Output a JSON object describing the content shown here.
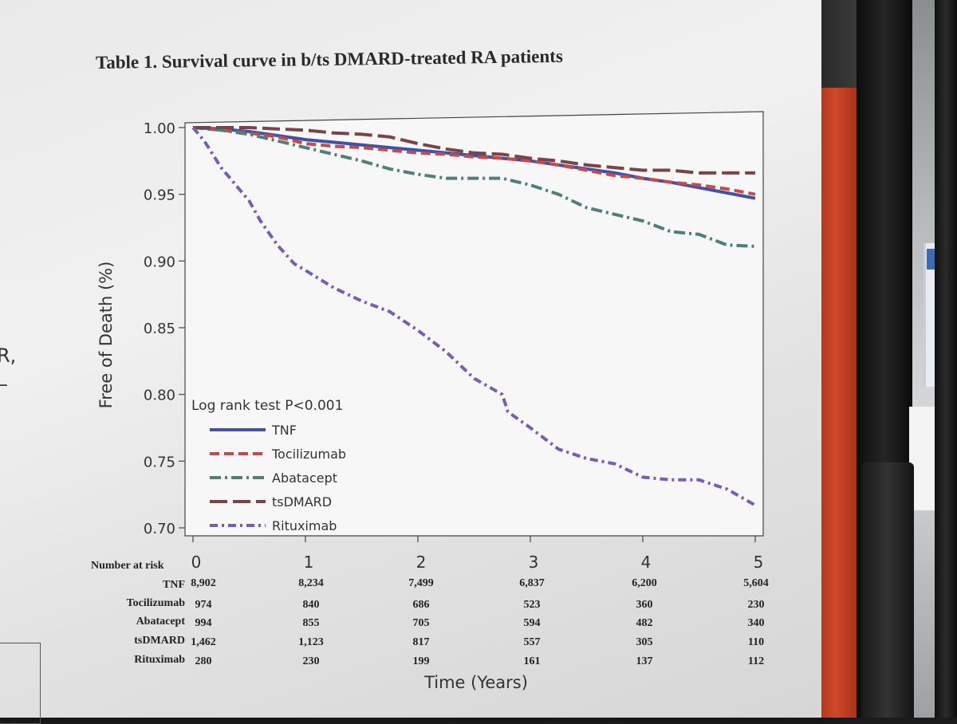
{
  "left_margin_text": {
    "line1": "R,",
    "line2": "–"
  },
  "chart_data": {
    "type": "line",
    "title": "Table 1. Survival curve in b/ts DMARD-treated RA patients",
    "xlabel": "Time (Years)",
    "ylabel": "Free of Death (%)",
    "xlim": [
      0,
      5
    ],
    "ylim": [
      0.7,
      1.0
    ],
    "x_ticks": [
      "0",
      "1",
      "2",
      "3",
      "4",
      "5"
    ],
    "y_ticks": [
      "0.70",
      "0.75",
      "0.80",
      "0.85",
      "0.90",
      "0.95",
      "1.00"
    ],
    "grid": false,
    "legend_placement": "bottom-left",
    "legend_title": "Log rank test P<0.001",
    "series": [
      {
        "name": "TNF",
        "color": "#3f51a8",
        "dash": "solid",
        "x": [
          0,
          0.25,
          0.5,
          0.75,
          1.0,
          1.25,
          1.5,
          1.75,
          2.0,
          2.25,
          2.5,
          2.75,
          3.0,
          3.25,
          3.5,
          3.75,
          4.0,
          4.25,
          4.5,
          4.75,
          5.0
        ],
        "y": [
          1.0,
          0.999,
          0.997,
          0.994,
          0.991,
          0.989,
          0.987,
          0.985,
          0.983,
          0.981,
          0.979,
          0.977,
          0.975,
          0.972,
          0.969,
          0.966,
          0.962,
          0.959,
          0.955,
          0.951,
          0.947
        ]
      },
      {
        "name": "Tocilizumab",
        "color": "#c74a4a",
        "dash": "12,6",
        "x": [
          0,
          0.25,
          0.5,
          0.75,
          1.0,
          1.25,
          1.5,
          1.75,
          2.0,
          2.25,
          2.5,
          2.75,
          3.0,
          3.25,
          3.5,
          3.75,
          4.0,
          4.25,
          4.5,
          4.75,
          5.0
        ],
        "y": [
          1.0,
          0.998,
          0.996,
          0.993,
          0.988,
          0.986,
          0.985,
          0.983,
          0.981,
          0.98,
          0.978,
          0.977,
          0.975,
          0.972,
          0.968,
          0.964,
          0.962,
          0.959,
          0.957,
          0.954,
          0.95
        ]
      },
      {
        "name": "Abatacept",
        "color": "#4f7f78",
        "dash": "14,5,3,5",
        "x": [
          0,
          0.25,
          0.5,
          0.75,
          1.0,
          1.25,
          1.5,
          1.75,
          2.0,
          2.25,
          2.5,
          2.75,
          3.0,
          3.25,
          3.5,
          3.75,
          4.0,
          4.25,
          4.5,
          4.75,
          5.0
        ],
        "y": [
          1.0,
          0.998,
          0.995,
          0.99,
          0.985,
          0.98,
          0.975,
          0.969,
          0.965,
          0.962,
          0.962,
          0.962,
          0.957,
          0.95,
          0.94,
          0.935,
          0.93,
          0.922,
          0.92,
          0.912,
          0.911
        ]
      },
      {
        "name": "tsDMARD",
        "color": "#7a4345",
        "dash": "22,7",
        "x": [
          0,
          0.25,
          0.5,
          0.75,
          1.0,
          1.25,
          1.5,
          1.75,
          2.0,
          2.25,
          2.5,
          2.75,
          3.0,
          3.25,
          3.5,
          3.75,
          4.0,
          4.25,
          4.5,
          4.75,
          5.0
        ],
        "y": [
          1.0,
          1.0,
          1.0,
          0.999,
          0.998,
          0.996,
          0.995,
          0.993,
          0.988,
          0.984,
          0.981,
          0.98,
          0.977,
          0.975,
          0.972,
          0.97,
          0.968,
          0.968,
          0.966,
          0.966,
          0.966
        ]
      },
      {
        "name": "Rituximab",
        "color": "#7a5cb8",
        "dash": "10,5,3,5",
        "x": [
          0,
          0.1,
          0.25,
          0.4,
          0.5,
          0.6,
          0.75,
          0.9,
          1.0,
          1.25,
          1.5,
          1.75,
          2.0,
          2.25,
          2.5,
          2.75,
          2.8,
          3.0,
          3.25,
          3.5,
          3.75,
          4.0,
          4.25,
          4.5,
          4.75,
          5.0
        ],
        "y": [
          1.0,
          0.99,
          0.97,
          0.955,
          0.945,
          0.93,
          0.912,
          0.898,
          0.893,
          0.88,
          0.87,
          0.862,
          0.848,
          0.832,
          0.812,
          0.8,
          0.787,
          0.775,
          0.759,
          0.752,
          0.748,
          0.738,
          0.736,
          0.736,
          0.729,
          0.717
        ]
      }
    ],
    "risk_table": {
      "header": "Number at risk",
      "columns": [
        "0",
        "1",
        "2",
        "3",
        "4",
        "5"
      ],
      "rows": [
        {
          "label": "TNF",
          "values": [
            "8,902",
            "8,234",
            "7,499",
            "6,837",
            "6,200",
            "5,604"
          ]
        },
        {
          "label": "Tocilizumab",
          "values": [
            "974",
            "840",
            "686",
            "523",
            "360",
            "230"
          ]
        },
        {
          "label": "Abatacept",
          "values": [
            "994",
            "855",
            "705",
            "594",
            "482",
            "340"
          ]
        },
        {
          "label": "tsDMARD",
          "values": [
            "1,462",
            "1,123",
            "817",
            "557",
            "305",
            "110"
          ]
        },
        {
          "label": "Rituximab",
          "values": [
            "280",
            "230",
            "199",
            "161",
            "137",
            "112"
          ]
        }
      ]
    }
  }
}
